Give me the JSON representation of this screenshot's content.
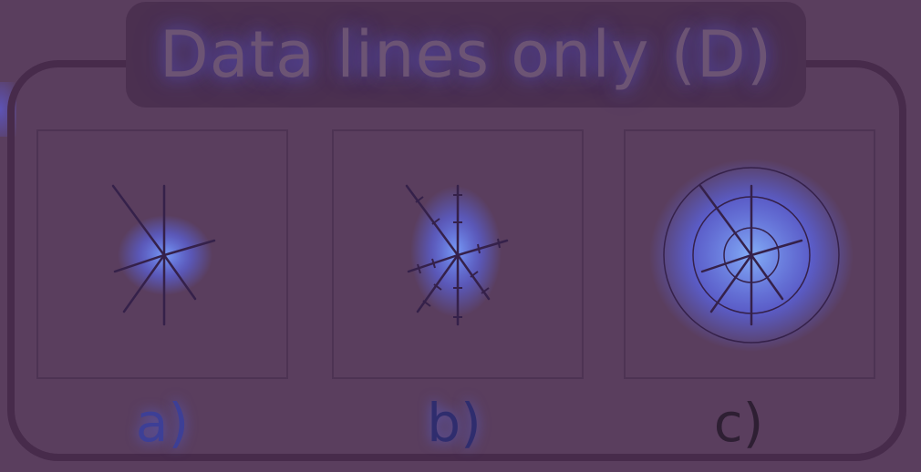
{
  "title": "Data lines only (D)",
  "panels": [
    {
      "caption": "a)",
      "style": "plain-rays"
    },
    {
      "caption": "b)",
      "style": "rays-with-ticks"
    },
    {
      "caption": "c)",
      "style": "rays-with-rings"
    }
  ],
  "colors": {
    "background": "#5a3e5e",
    "frame": "#472b4b",
    "title_plate": "#4b3050",
    "ray": "#35214a",
    "glow": "#6a86ff"
  }
}
